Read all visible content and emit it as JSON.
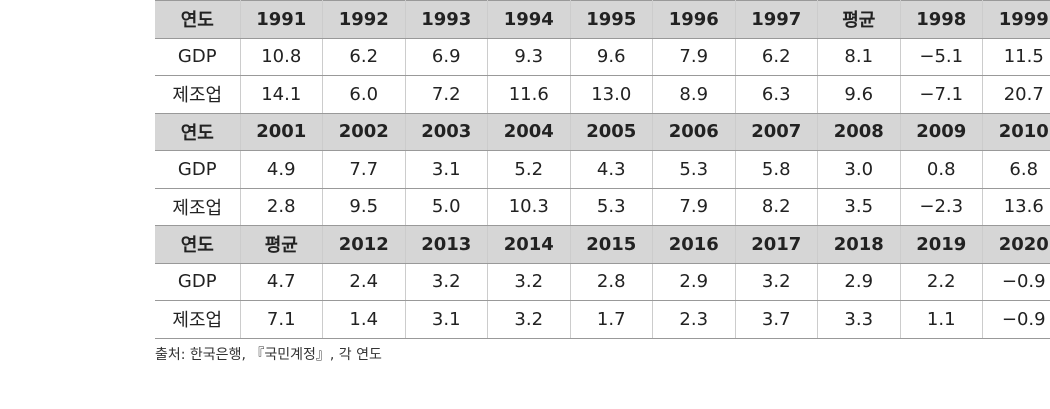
{
  "table": {
    "blocks": [
      {
        "header": [
          "연도",
          "1991",
          "1992",
          "1993",
          "1994",
          "1995",
          "1996",
          "1997",
          "평균",
          "1998",
          "1999"
        ],
        "rows": [
          [
            "GDP",
            "10.8",
            "6.2",
            "6.9",
            "9.3",
            "9.6",
            "7.9",
            "6.2",
            "8.1",
            "−5.1",
            "11.5"
          ],
          [
            "제조업",
            "14.1",
            "6.0",
            "7.2",
            "11.6",
            "13.0",
            "8.9",
            "6.3",
            "9.6",
            "−7.1",
            "20.7"
          ]
        ]
      },
      {
        "header": [
          "연도",
          "2001",
          "2002",
          "2003",
          "2004",
          "2005",
          "2006",
          "2007",
          "2008",
          "2009",
          "2010"
        ],
        "rows": [
          [
            "GDP",
            "4.9",
            "7.7",
            "3.1",
            "5.2",
            "4.3",
            "5.3",
            "5.8",
            "3.0",
            "0.8",
            "6.8"
          ],
          [
            "제조업",
            "2.8",
            "9.5",
            "5.0",
            "10.3",
            "5.3",
            "7.9",
            "8.2",
            "3.5",
            "−2.3",
            "13.6"
          ]
        ]
      },
      {
        "header": [
          "연도",
          "평균",
          "2012",
          "2013",
          "2014",
          "2015",
          "2016",
          "2017",
          "2018",
          "2019",
          "2020"
        ],
        "rows": [
          [
            "GDP",
            "4.7",
            "2.4",
            "3.2",
            "3.2",
            "2.8",
            "2.9",
            "3.2",
            "2.9",
            "2.2",
            "−0.9"
          ],
          [
            "제조업",
            "7.1",
            "1.4",
            "3.1",
            "3.2",
            "1.7",
            "2.3",
            "3.7",
            "3.3",
            "1.1",
            "−0.9"
          ]
        ]
      }
    ]
  },
  "source": "출처: 한국은행, 『국민계정』, 각 연도"
}
